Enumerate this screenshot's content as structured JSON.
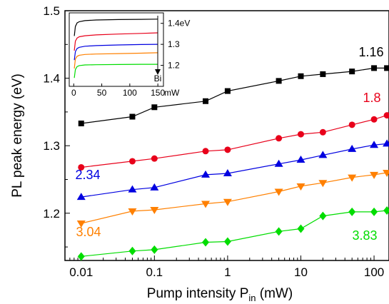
{
  "chart_data": [
    {
      "type": "line",
      "xscale": "log",
      "xlabel_main": "Pump intensity P",
      "xlabel_sub": "in",
      "xlabel_unit": " (mW)",
      "ylabel": "PL peak energy (eV)",
      "xlim": [
        0.006,
        160
      ],
      "ylim": [
        1.13,
        1.5
      ],
      "xticks": [
        0.01,
        0.1,
        1,
        10,
        100
      ],
      "xtick_labels": [
        "0.01",
        "0.1",
        "1",
        "10",
        "100"
      ],
      "yticks": [
        1.2,
        1.3,
        1.4,
        1.5
      ],
      "ytick_labels": [
        "1.2",
        "1.3",
        "1.4",
        "1.5"
      ],
      "x": [
        0.01,
        0.05,
        0.1,
        0.5,
        1,
        5,
        10,
        20,
        50,
        100,
        150
      ],
      "series": [
        {
          "name": "1.16",
          "color": "#000000",
          "marker": "square",
          "values": [
            1.333,
            1.343,
            1.357,
            1.366,
            1.381,
            1.396,
            1.403,
            1.406,
            1.41,
            1.415,
            1.415
          ]
        },
        {
          "name": "1.8",
          "color": "#e8001a",
          "marker": "circle",
          "values": [
            1.268,
            1.277,
            1.281,
            1.292,
            1.294,
            1.311,
            1.317,
            1.32,
            1.331,
            1.339,
            1.345
          ]
        },
        {
          "name": "2.34",
          "color": "#0000e0",
          "marker": "triangle-up",
          "values": [
            1.224,
            1.235,
            1.238,
            1.257,
            1.259,
            1.273,
            1.279,
            1.286,
            1.295,
            1.301,
            1.303
          ]
        },
        {
          "name": "3.04",
          "color": "#ff8000",
          "marker": "triangle-down",
          "values": [
            1.185,
            1.203,
            1.205,
            1.214,
            1.217,
            1.232,
            1.24,
            1.245,
            1.253,
            1.257,
            1.26
          ]
        },
        {
          "name": "3.83",
          "color": "#00dd00",
          "marker": "diamond",
          "values": [
            1.136,
            1.144,
            1.146,
            1.157,
            1.158,
            1.173,
            1.177,
            1.196,
            1.202,
            1.202,
            1.204
          ]
        }
      ]
    },
    {
      "type": "line",
      "xlim": [
        -8,
        160
      ],
      "ylim": [
        1.1,
        1.45
      ],
      "xticks": [
        0,
        50,
        100,
        150
      ],
      "xtick_labels": [
        "0",
        "50",
        "100",
        "150"
      ],
      "xunit_label": "mW",
      "yticks": [
        1.2,
        1.3,
        1.4
      ],
      "ytick_labels": [
        "1.2",
        "1.3",
        "1.4eV"
      ],
      "arrow_label": "Bi",
      "series": [
        {
          "color": "#000000",
          "x": [
            1,
            3,
            6,
            10,
            20,
            40,
            80,
            120,
            150
          ],
          "values": [
            1.34,
            1.385,
            1.402,
            1.408,
            1.413,
            1.416,
            1.418,
            1.419,
            1.42
          ]
        },
        {
          "color": "#e8001a",
          "x": [
            1,
            3,
            6,
            10,
            20,
            40,
            80,
            120,
            150
          ],
          "values": [
            1.27,
            1.315,
            1.33,
            1.336,
            1.341,
            1.345,
            1.349,
            1.352,
            1.355
          ]
        },
        {
          "color": "#0000e0",
          "x": [
            1,
            3,
            6,
            10,
            20,
            40,
            80,
            120,
            150
          ],
          "values": [
            1.225,
            1.265,
            1.28,
            1.286,
            1.291,
            1.294,
            1.297,
            1.299,
            1.3
          ]
        },
        {
          "color": "#ff8000",
          "x": [
            1,
            3,
            6,
            10,
            20,
            40,
            80,
            120,
            150
          ],
          "values": [
            1.185,
            1.23,
            1.243,
            1.248,
            1.252,
            1.254,
            1.256,
            1.258,
            1.26
          ]
        },
        {
          "color": "#00dd00",
          "x": [
            1,
            3,
            6,
            10,
            20,
            40,
            80,
            120,
            150
          ],
          "values": [
            1.14,
            1.18,
            1.194,
            1.199,
            1.202,
            1.203,
            1.204,
            1.205,
            1.205
          ]
        }
      ]
    }
  ]
}
